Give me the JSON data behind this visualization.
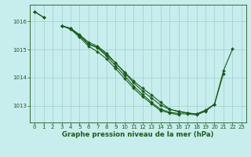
{
  "xlabel": "Graphe pression niveau de la mer (hPa)",
  "xlim": [
    -0.5,
    23.5
  ],
  "ylim": [
    1012.4,
    1016.6
  ],
  "yticks": [
    1013,
    1014,
    1015,
    1016
  ],
  "xticks": [
    0,
    1,
    2,
    3,
    4,
    5,
    6,
    7,
    8,
    9,
    10,
    11,
    12,
    13,
    14,
    15,
    16,
    17,
    18,
    19,
    20,
    21,
    22,
    23
  ],
  "bg_color": "#c8eded",
  "line_color": "#1a5c1a",
  "grid_color": "#9ecece",
  "series": [
    [
      1016.35,
      1016.15,
      null,
      1015.85,
      1015.75,
      1015.5,
      1015.2,
      1015.08,
      1014.82,
      1014.52,
      1014.2,
      1013.88,
      1013.62,
      1013.38,
      1013.12,
      1012.88,
      1012.78,
      1012.74,
      1012.7,
      1012.82,
      1013.05,
      1014.15,
      null,
      null
    ],
    [
      1016.35,
      1016.15,
      null,
      1015.85,
      1015.73,
      1015.44,
      1015.12,
      1014.92,
      1014.67,
      1014.32,
      1013.97,
      1013.62,
      1013.32,
      1013.07,
      1012.82,
      1012.74,
      1012.67,
      null,
      null,
      null,
      null,
      null,
      null,
      null
    ],
    [
      null,
      null,
      null,
      1015.85,
      1015.76,
      1015.53,
      1015.26,
      1015.12,
      1014.87,
      1014.52,
      1014.17,
      1013.82,
      1013.52,
      1013.27,
      1013.02,
      1012.87,
      1012.8,
      1012.74,
      1012.7,
      1012.84,
      1013.05,
      null,
      null,
      null
    ],
    [
      null,
      null,
      null,
      1015.85,
      1015.74,
      1015.49,
      1015.19,
      1015.06,
      1014.77,
      1014.42,
      1014.07,
      1013.7,
      1013.4,
      1013.12,
      1012.87,
      1012.77,
      1012.72,
      1012.7,
      1012.67,
      1012.8,
      1013.05,
      1014.25,
      1015.02,
      null
    ]
  ],
  "marker": "D",
  "markersize": 2.0,
  "linewidth": 0.8,
  "tick_fontsize": 5.0,
  "xlabel_fontsize": 6.2
}
